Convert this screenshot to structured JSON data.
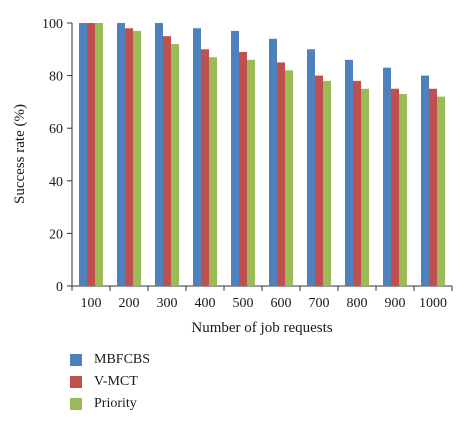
{
  "chart_data": {
    "type": "bar",
    "xlabel": "Number of job requests",
    "ylabel": "Success rate (%)",
    "ylim": [
      0,
      100
    ],
    "yticks": [
      0,
      20,
      40,
      60,
      80,
      100
    ],
    "categories": [
      "100",
      "200",
      "300",
      "400",
      "500",
      "600",
      "700",
      "800",
      "900",
      "1000"
    ],
    "series": [
      {
        "name": "MBFCBS",
        "color": "#4f81bd",
        "values": [
          100,
          100,
          100,
          98,
          97,
          94,
          90,
          86,
          83,
          80
        ]
      },
      {
        "name": "V-MCT",
        "color": "#c0504d",
        "values": [
          100,
          98,
          95,
          90,
          89,
          85,
          80,
          78,
          75,
          75
        ]
      },
      {
        "name": "Priority",
        "color": "#9bbb59",
        "values": [
          100,
          97,
          92,
          87,
          86,
          82,
          78,
          75,
          73,
          72
        ]
      }
    ],
    "grid": false,
    "legend_position": "bottom-left"
  }
}
